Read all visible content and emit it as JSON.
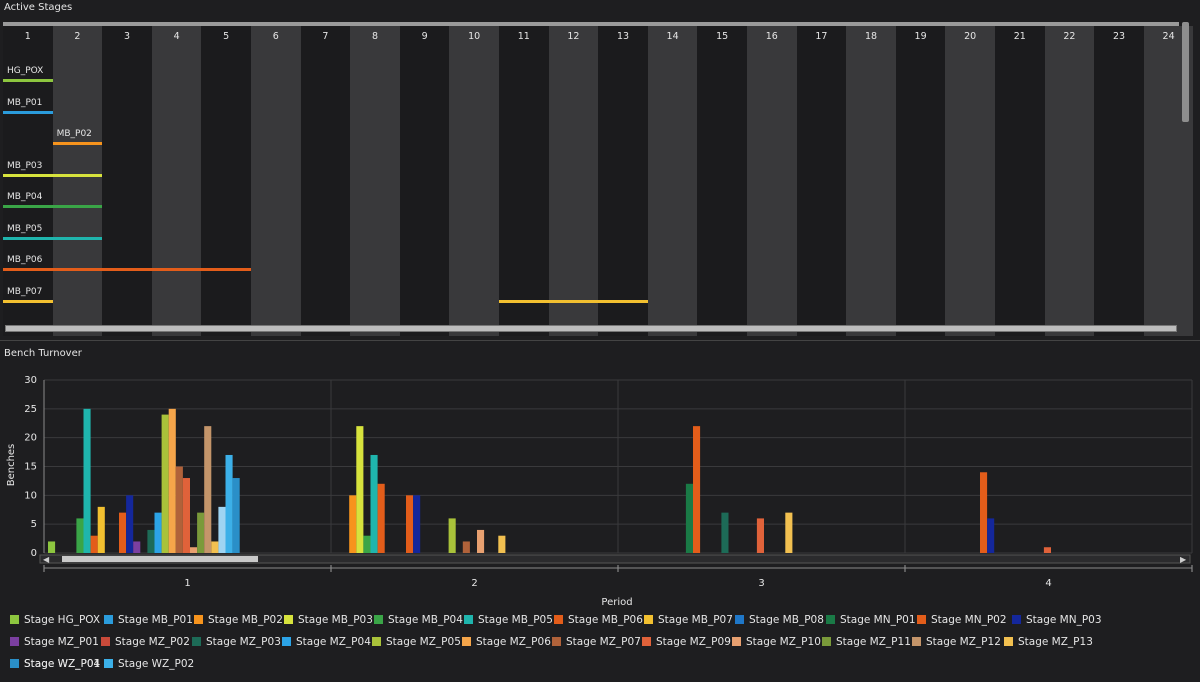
{
  "active_stages": {
    "title": "Active Stages",
    "columns": [
      "1",
      "2",
      "3",
      "4",
      "5",
      "6",
      "7",
      "8",
      "9",
      "10",
      "11",
      "12",
      "13",
      "14",
      "15",
      "16",
      "17",
      "18",
      "19",
      "20",
      "21",
      "22",
      "23",
      "24"
    ],
    "rows": [
      {
        "label": "HG_POX",
        "color": "#8dc63f",
        "label_col": 1,
        "bars": [
          [
            1,
            1
          ]
        ]
      },
      {
        "label": "MB_P01",
        "color": "#2b9cdc",
        "label_col": 1,
        "bars": [
          [
            1,
            1
          ]
        ]
      },
      {
        "label": "MB_P02",
        "color": "#f7941d",
        "label_col": 2,
        "bars": [
          [
            2,
            2
          ]
        ]
      },
      {
        "label": "MB_P03",
        "color": "#d7e33d",
        "label_col": 1,
        "bars": [
          [
            1,
            2
          ]
        ]
      },
      {
        "label": "MB_P04",
        "color": "#3aa547",
        "label_col": 1,
        "bars": [
          [
            1,
            2
          ]
        ]
      },
      {
        "label": "MB_P05",
        "color": "#1fb5ad",
        "label_col": 1,
        "bars": [
          [
            1,
            2
          ]
        ]
      },
      {
        "label": "MB_P06",
        "color": "#e35d1a",
        "label_col": 1,
        "bars": [
          [
            1,
            5
          ]
        ]
      },
      {
        "label": "MB_P07",
        "color": "#f2c030",
        "label_col": 1,
        "bars": [
          [
            1,
            1
          ],
          [
            11,
            13
          ]
        ]
      }
    ]
  },
  "bench_turnover": {
    "title": "Bench Turnover",
    "ylabel": "Benches",
    "xlabel": "Period",
    "ylim": [
      0,
      30
    ],
    "yticks": [
      "0",
      "5",
      "10",
      "15",
      "20",
      "25",
      "30"
    ],
    "categories": [
      "1",
      "2",
      "3",
      "4"
    ]
  },
  "chart_data": {
    "type": "bar",
    "title": "Bench Turnover",
    "xlabel": "Period",
    "ylabel": "Benches",
    "ylim": [
      0,
      30
    ],
    "categories": [
      "1",
      "2",
      "3",
      "4"
    ],
    "series": [
      {
        "name": "Stage HG_POX",
        "color": "#8dc63f",
        "values": [
          2,
          0,
          0,
          0
        ]
      },
      {
        "name": "Stage MB_P01",
        "color": "#2b9cdc",
        "values": [
          0,
          0,
          0,
          0
        ]
      },
      {
        "name": "Stage MB_P02",
        "color": "#f7941d",
        "values": [
          0,
          10,
          0,
          0
        ]
      },
      {
        "name": "Stage MB_P03",
        "color": "#d7e33d",
        "values": [
          0,
          22,
          0,
          0
        ]
      },
      {
        "name": "Stage MB_P04",
        "color": "#3aa547",
        "values": [
          6,
          3,
          0,
          0
        ]
      },
      {
        "name": "Stage MB_P05",
        "color": "#1fb5ad",
        "values": [
          25,
          17,
          0,
          0
        ]
      },
      {
        "name": "Stage MB_P06",
        "color": "#e35d1a",
        "values": [
          3,
          12,
          0,
          0
        ]
      },
      {
        "name": "Stage MB_P07",
        "color": "#f2c030",
        "values": [
          8,
          0,
          0,
          0
        ]
      },
      {
        "name": "Stage MB_P08",
        "color": "#1f77c8",
        "values": [
          0,
          0,
          0,
          0
        ]
      },
      {
        "name": "Stage MN_P01",
        "color": "#1a7a46",
        "values": [
          0,
          0,
          12,
          0
        ]
      },
      {
        "name": "Stage MN_P02",
        "color": "#e35d1a",
        "values": [
          7,
          10,
          22,
          14
        ]
      },
      {
        "name": "Stage MN_P03",
        "color": "#14279b",
        "values": [
          10,
          10,
          0,
          6
        ]
      },
      {
        "name": "Stage MZ_P01",
        "color": "#7b3fa0",
        "values": [
          2,
          0,
          0,
          0
        ]
      },
      {
        "name": "Stage MZ_P02",
        "color": "#c94a3a",
        "values": [
          0,
          0,
          0,
          0
        ]
      },
      {
        "name": "Stage MZ_P03",
        "color": "#1d6b57",
        "values": [
          4,
          0,
          7,
          0
        ]
      },
      {
        "name": "Stage MZ_P04",
        "color": "#2ca3e6",
        "values": [
          7,
          0,
          0,
          0
        ]
      },
      {
        "name": "Stage MZ_P05",
        "color": "#a9c23a",
        "values": [
          24,
          6,
          0,
          0
        ]
      },
      {
        "name": "Stage MZ_P06",
        "color": "#f5a54a",
        "values": [
          25,
          0,
          0,
          0
        ]
      },
      {
        "name": "Stage MZ_P07",
        "color": "#b0623a",
        "values": [
          15,
          2,
          0,
          0
        ]
      },
      {
        "name": "Stage MZ_P09",
        "color": "#e0623a",
        "values": [
          13,
          0,
          6,
          1
        ]
      },
      {
        "name": "Stage MZ_P10",
        "color": "#e8a070",
        "values": [
          1,
          4,
          0,
          0
        ]
      },
      {
        "name": "Stage MZ_P11",
        "color": "#7a9a3a",
        "values": [
          7,
          0,
          0,
          0
        ]
      },
      {
        "name": "Stage MZ_P12",
        "color": "#c4956a",
        "values": [
          22,
          0,
          0,
          0
        ]
      },
      {
        "name": "Stage MZ_P13",
        "color": "#f2c050",
        "values": [
          2,
          3,
          7,
          0
        ]
      },
      {
        "name": "Stage WZ_P01",
        "color": "#9fd4f2",
        "values": [
          8,
          0,
          0,
          0
        ]
      },
      {
        "name": "Stage WZ_P02",
        "color": "#3cb0e8",
        "values": [
          17,
          0,
          0,
          0
        ]
      },
      {
        "name": "Stage WZ_P04",
        "color": "#2a8fc8",
        "values": [
          13,
          0,
          0,
          0
        ]
      }
    ]
  }
}
